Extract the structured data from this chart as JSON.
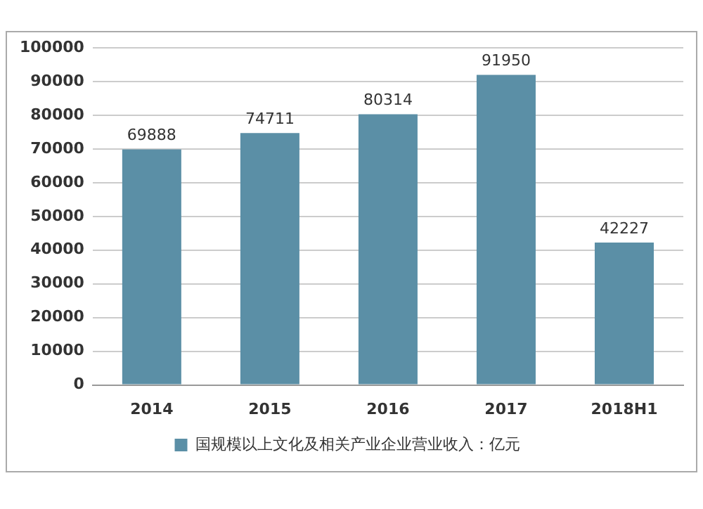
{
  "chart_data": {
    "type": "bar",
    "categories": [
      "2014",
      "2015",
      "2016",
      "2017",
      "2018H1"
    ],
    "series": [
      {
        "name": "国规模以上文化及相关产业企业营业收入：亿元",
        "color": "#5b8fa6",
        "values": [
          69888,
          74711,
          80314,
          91950,
          42227
        ]
      }
    ],
    "ylim": [
      0,
      100000
    ],
    "yticks": [
      0,
      10000,
      20000,
      30000,
      40000,
      50000,
      60000,
      70000,
      80000,
      90000,
      100000
    ],
    "grid": "y",
    "legend": "bottom",
    "data_labels": true
  }
}
